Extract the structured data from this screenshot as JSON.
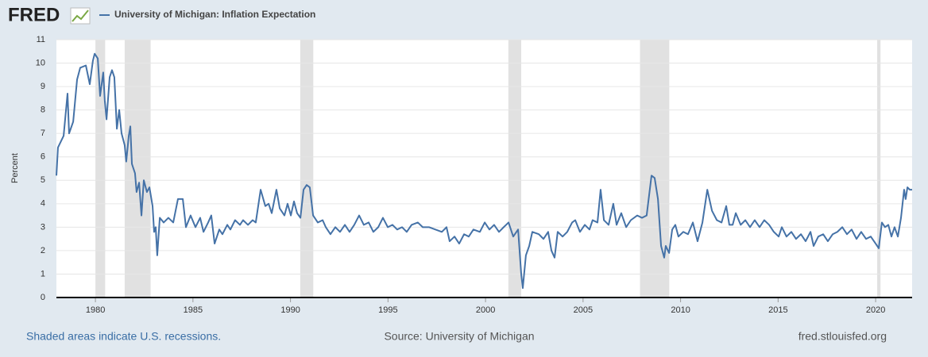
{
  "chart_data": {
    "type": "line",
    "logo": "FRED",
    "y_label": "Percent",
    "note": "Shaded areas indicate U.S. recessions.",
    "source": "Source: University of Michigan",
    "site": "fred.stlouisfed.org",
    "xlim": [
      1978,
      2021.87
    ],
    "ylim": [
      0,
      11
    ],
    "xticks": [
      1980,
      1985,
      1990,
      1995,
      2000,
      2005,
      2010,
      2015,
      2020
    ],
    "yticks": [
      0,
      1,
      2,
      3,
      4,
      5,
      6,
      7,
      8,
      9,
      10,
      11
    ],
    "grid": true,
    "recessions": [
      [
        1980.0,
        1980.5
      ],
      [
        1981.5,
        1982.83
      ],
      [
        1990.5,
        1991.17
      ],
      [
        2001.17,
        2001.83
      ],
      [
        2007.92,
        2009.42
      ],
      [
        2020.08,
        2020.25
      ]
    ],
    "x": [
      1978.0,
      1978.08,
      1978.37,
      1978.57,
      1978.65,
      1978.86,
      1979.06,
      1979.22,
      1979.51,
      1979.71,
      1979.87,
      1979.96,
      1980.12,
      1980.24,
      1980.4,
      1980.48,
      1980.57,
      1980.73,
      1980.85,
      1980.97,
      1981.1,
      1981.22,
      1981.34,
      1981.5,
      1981.58,
      1981.71,
      1981.79,
      1981.87,
      1982.03,
      1982.11,
      1982.24,
      1982.36,
      1982.48,
      1982.64,
      1982.77,
      1982.93,
      1983.01,
      1983.09,
      1983.17,
      1983.3,
      1983.5,
      1983.74,
      1983.99,
      1984.23,
      1984.48,
      1984.64,
      1984.88,
      1985.13,
      1985.37,
      1985.54,
      1985.78,
      1985.94,
      1986.11,
      1986.35,
      1986.51,
      1986.76,
      1986.92,
      1987.16,
      1987.41,
      1987.57,
      1987.82,
      1988.06,
      1988.22,
      1988.47,
      1988.71,
      1988.88,
      1989.04,
      1989.28,
      1989.45,
      1989.69,
      1989.85,
      1990.02,
      1990.18,
      1990.34,
      1990.51,
      1990.67,
      1990.83,
      1990.99,
      1991.16,
      1991.4,
      1991.65,
      1991.81,
      1992.05,
      1992.3,
      1992.54,
      1992.79,
      1993.03,
      1993.27,
      1993.52,
      1993.76,
      1994.01,
      1994.25,
      1994.5,
      1994.74,
      1994.99,
      1995.23,
      1995.47,
      1995.72,
      1995.96,
      1996.21,
      1996.53,
      1996.78,
      1997.1,
      1997.43,
      1997.76,
      1998.0,
      1998.16,
      1998.41,
      1998.65,
      1998.9,
      1999.14,
      1999.38,
      1999.71,
      1999.96,
      2000.2,
      2000.44,
      2000.69,
      2000.93,
      2001.18,
      2001.42,
      2001.67,
      2001.83,
      2001.91,
      2002.07,
      2002.24,
      2002.4,
      2002.73,
      2002.97,
      2003.21,
      2003.38,
      2003.54,
      2003.7,
      2003.95,
      2004.19,
      2004.44,
      2004.6,
      2004.84,
      2005.09,
      2005.33,
      2005.49,
      2005.74,
      2005.9,
      2006.07,
      2006.31,
      2006.55,
      2006.72,
      2006.96,
      2007.21,
      2007.45,
      2007.78,
      2008.02,
      2008.26,
      2008.51,
      2008.67,
      2008.84,
      2009.0,
      2009.16,
      2009.24,
      2009.41,
      2009.57,
      2009.73,
      2009.89,
      2010.14,
      2010.38,
      2010.63,
      2010.87,
      2011.12,
      2011.37,
      2011.61,
      2011.86,
      2012.1,
      2012.34,
      2012.5,
      2012.67,
      2012.83,
      2013.08,
      2013.32,
      2013.56,
      2013.8,
      2014.05,
      2014.29,
      2014.54,
      2014.78,
      2015.03,
      2015.19,
      2015.43,
      2015.68,
      2015.92,
      2016.17,
      2016.41,
      2016.66,
      2016.82,
      2017.06,
      2017.31,
      2017.55,
      2017.8,
      2018.04,
      2018.29,
      2018.53,
      2018.77,
      2019.02,
      2019.26,
      2019.51,
      2019.75,
      2020.0,
      2020.16,
      2020.32,
      2020.48,
      2020.65,
      2020.81,
      2020.97,
      2021.14,
      2021.3,
      2021.46,
      2021.54,
      2021.63,
      2021.75,
      2021.87
    ],
    "series": [
      {
        "name": "University of Michigan: Inflation Expectation",
        "color": "#4572a7",
        "values": [
          5.2,
          6.4,
          6.9,
          8.7,
          7.0,
          7.5,
          9.3,
          9.8,
          9.9,
          9.1,
          10.1,
          10.4,
          10.2,
          8.6,
          9.6,
          8.4,
          7.6,
          9.4,
          9.7,
          9.4,
          7.2,
          8.0,
          7.0,
          6.5,
          5.8,
          6.9,
          7.3,
          5.7,
          5.3,
          4.5,
          4.9,
          3.5,
          5.0,
          4.5,
          4.7,
          3.9,
          2.8,
          3.0,
          1.8,
          3.4,
          3.2,
          3.4,
          3.2,
          4.2,
          4.2,
          3.0,
          3.5,
          3.0,
          3.4,
          2.8,
          3.2,
          3.5,
          2.3,
          2.9,
          2.7,
          3.1,
          2.9,
          3.3,
          3.1,
          3.3,
          3.1,
          3.3,
          3.2,
          4.6,
          3.9,
          4.0,
          3.6,
          4.6,
          3.8,
          3.5,
          4.0,
          3.5,
          4.1,
          3.6,
          3.4,
          4.6,
          4.8,
          4.7,
          3.5,
          3.2,
          3.3,
          3.0,
          2.7,
          3.0,
          2.8,
          3.1,
          2.8,
          3.1,
          3.5,
          3.1,
          3.2,
          2.8,
          3.0,
          3.4,
          3.0,
          3.1,
          2.9,
          3.0,
          2.8,
          3.1,
          3.2,
          3.0,
          3.0,
          2.9,
          2.8,
          3.0,
          2.4,
          2.6,
          2.3,
          2.7,
          2.6,
          2.9,
          2.8,
          3.2,
          2.9,
          3.1,
          2.8,
          3.0,
          3.2,
          2.6,
          2.9,
          1.0,
          0.4,
          1.8,
          2.2,
          2.8,
          2.7,
          2.5,
          2.8,
          2.0,
          1.7,
          2.8,
          2.6,
          2.8,
          3.2,
          3.3,
          2.8,
          3.1,
          2.9,
          3.3,
          3.2,
          4.6,
          3.3,
          3.1,
          4.0,
          3.1,
          3.6,
          3.0,
          3.3,
          3.5,
          3.4,
          3.5,
          5.2,
          5.1,
          4.2,
          2.2,
          1.7,
          2.2,
          1.9,
          2.9,
          3.1,
          2.6,
          2.8,
          2.7,
          3.2,
          2.4,
          3.2,
          4.6,
          3.7,
          3.3,
          3.2,
          3.9,
          3.1,
          3.1,
          3.6,
          3.1,
          3.3,
          3.0,
          3.3,
          3.0,
          3.3,
          3.1,
          2.8,
          2.6,
          3.0,
          2.6,
          2.8,
          2.5,
          2.7,
          2.4,
          2.8,
          2.2,
          2.6,
          2.7,
          2.4,
          2.7,
          2.8,
          3.0,
          2.7,
          2.9,
          2.5,
          2.8,
          2.5,
          2.6,
          2.3,
          2.1,
          3.2,
          3.0,
          3.1,
          2.6,
          3.0,
          2.6,
          3.4,
          4.6,
          4.2,
          4.7,
          4.6,
          4.6
        ]
      }
    ]
  }
}
